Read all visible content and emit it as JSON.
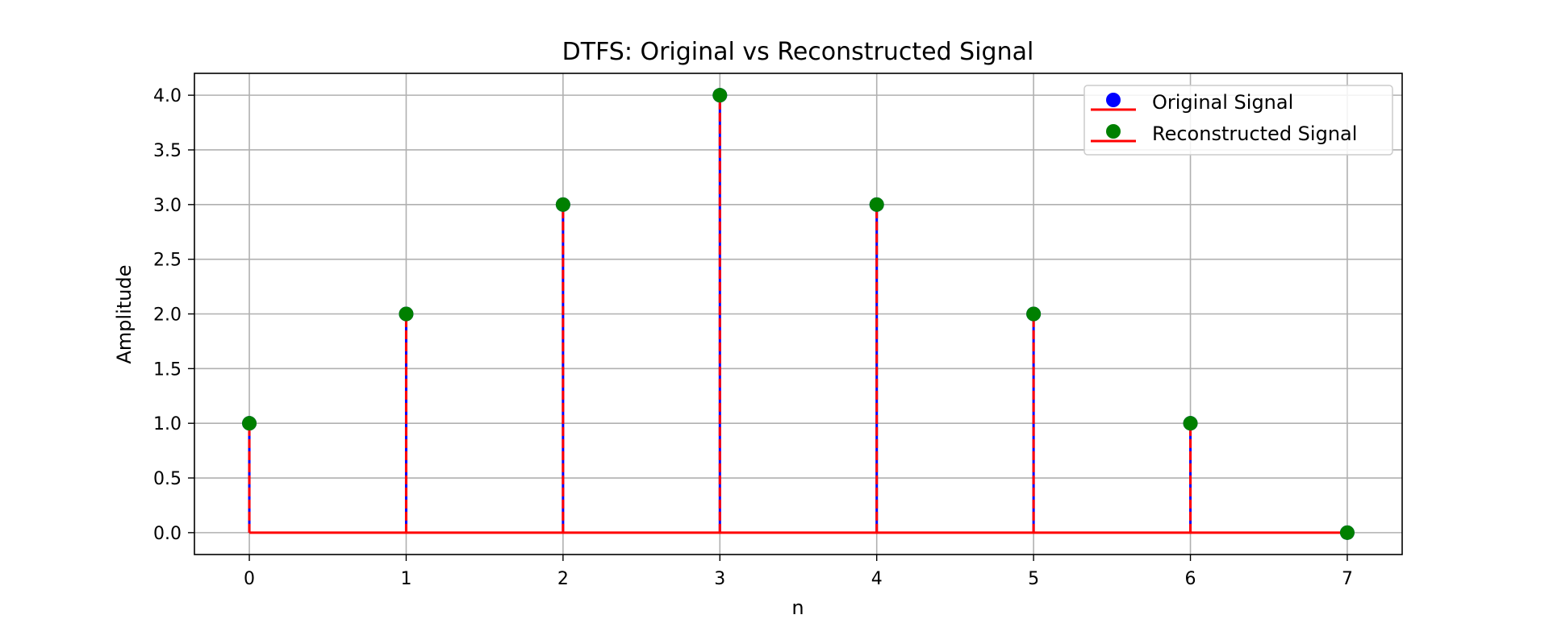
{
  "chart_data": {
    "type": "stem",
    "title": "DTFS: Original vs Reconstructed Signal",
    "xlabel": "n",
    "ylabel": "Amplitude",
    "xlim": [
      -0.35,
      7.35
    ],
    "ylim": [
      -0.2,
      4.2
    ],
    "x": [
      0,
      1,
      2,
      3,
      4,
      5,
      6,
      7
    ],
    "xticks": [
      "0",
      "1",
      "2",
      "3",
      "4",
      "5",
      "6",
      "7"
    ],
    "yticks": [
      0.0,
      0.5,
      1.0,
      1.5,
      2.0,
      2.5,
      3.0,
      3.5,
      4.0
    ],
    "ytick_labels": [
      "0.0",
      "0.5",
      "1.0",
      "1.5",
      "2.0",
      "2.5",
      "3.0",
      "3.5",
      "4.0"
    ],
    "grid": true,
    "legend_position": "top-right",
    "series": [
      {
        "name": "Original Signal",
        "values": [
          1,
          2,
          3,
          4,
          3,
          2,
          1,
          0
        ],
        "marker_color": "#0000ff",
        "stem_color": "#0000ff",
        "stem_style": "solid",
        "baseline_color": "#ff0000"
      },
      {
        "name": "Reconstructed Signal",
        "values": [
          1,
          2,
          3,
          4,
          3,
          2,
          1,
          0
        ],
        "marker_color": "#008000",
        "stem_color": "#ff0000",
        "stem_style": "dashed",
        "baseline_color": "#ff0000"
      }
    ]
  }
}
